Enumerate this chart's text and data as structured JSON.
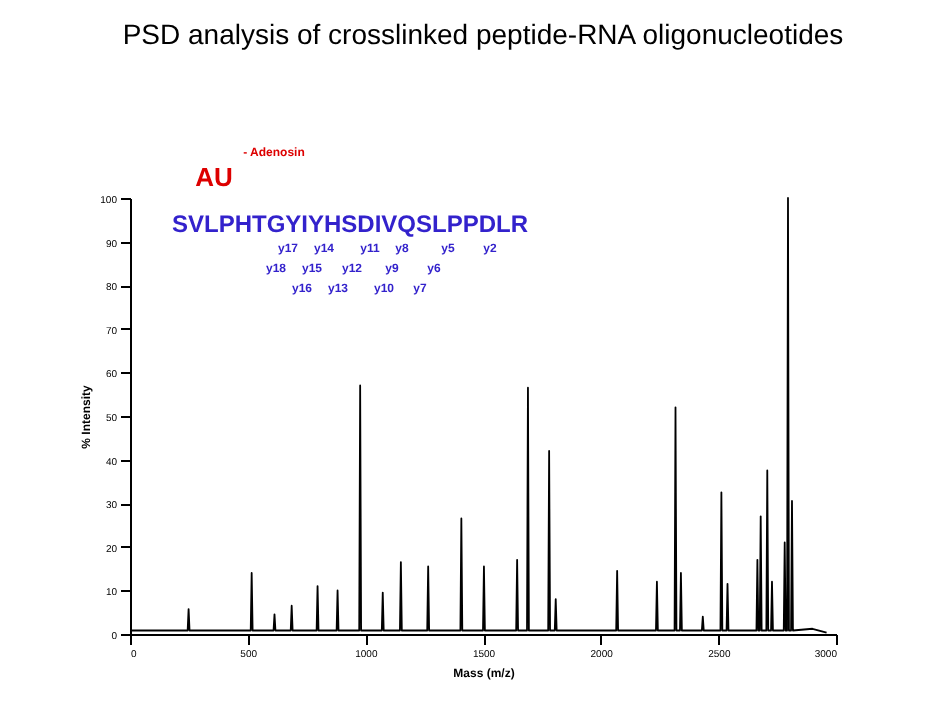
{
  "chart_data": {
    "type": "line",
    "title": "PSD analysis of crosslinked peptide-RNA oligonucleotides",
    "xlabel": "Mass (m/z)",
    "ylabel": "% Intensity",
    "x": [
      0,
      245,
      249,
      253,
      513,
      517,
      521,
      610,
      614,
      618,
      683,
      687,
      691,
      793,
      797,
      801,
      878,
      882,
      886,
      974,
      978,
      982,
      1070,
      1074,
      1078,
      1147,
      1151,
      1155,
      1263,
      1267,
      1271,
      1404,
      1408,
      1412,
      1500,
      1504,
      1508,
      1641,
      1645,
      1649,
      1687,
      1691,
      1695,
      1777,
      1781,
      1785,
      1805,
      1809,
      1813,
      2066,
      2070,
      2074,
      2235,
      2239,
      2243,
      2314,
      2318,
      2322,
      2337,
      2341,
      2345,
      2430,
      2434,
      2438,
      2509,
      2513,
      2517,
      2535,
      2539,
      2543,
      2662,
      2666,
      2670,
      2676,
      2680,
      2684,
      2704,
      2708,
      2712,
      2724,
      2728,
      2732,
      2778,
      2782,
      2786,
      2792,
      2796,
      2800,
      2809,
      2813,
      2817,
      2900,
      2960
    ],
    "series": [
      {
        "color": "#000000",
        "values": [
          0.8,
          0.8,
          5.7,
          0.8,
          0.8,
          14,
          0.8,
          0.8,
          4.5,
          0.8,
          0.8,
          6.5,
          0.8,
          0.8,
          11,
          0.8,
          0.8,
          10,
          0.8,
          0.8,
          57,
          0.8,
          0.8,
          9.5,
          0.8,
          0.8,
          16.5,
          0.8,
          0.8,
          15.5,
          0.8,
          0.8,
          26.5,
          0.8,
          0.8,
          15.5,
          0.8,
          0.8,
          17,
          0.8,
          0.8,
          56.5,
          0.8,
          0.8,
          42,
          0.8,
          0.8,
          8,
          0.8,
          0.8,
          14.5,
          0.8,
          0.8,
          12,
          0.8,
          0.8,
          52,
          0.8,
          0.8,
          14,
          0.8,
          0.8,
          4,
          0.8,
          0.8,
          32.5,
          0.8,
          0.8,
          11.5,
          0.8,
          0.8,
          17,
          0.8,
          0.8,
          27,
          0.8,
          0.8,
          37.5,
          0.8,
          0.8,
          12,
          0.8,
          0.8,
          21,
          0.8,
          0.8,
          100,
          0.8,
          0.8,
          30.5,
          0.8,
          1.2,
          0.3
        ]
      }
    ],
    "xlim": [
      0,
      3000
    ],
    "xticks": [
      0,
      500,
      1000,
      1500,
      2000,
      2500,
      3000
    ],
    "ylim": [
      0,
      100
    ],
    "yticks": [
      0,
      10,
      20,
      30,
      40,
      50,
      60,
      70,
      80,
      90,
      100
    ],
    "grid": false,
    "marker": "none",
    "line_style": "solid",
    "annotations": [
      "- Adenosin",
      "AU",
      "SVLPHTGYIYHSDIVQSLPPDLR",
      "y18",
      "y17",
      "y16",
      "y15",
      "y14",
      "y13",
      "y12",
      "y11",
      "y10",
      "y9",
      "y8",
      "y7",
      "y6",
      "y5",
      "y2"
    ]
  }
}
